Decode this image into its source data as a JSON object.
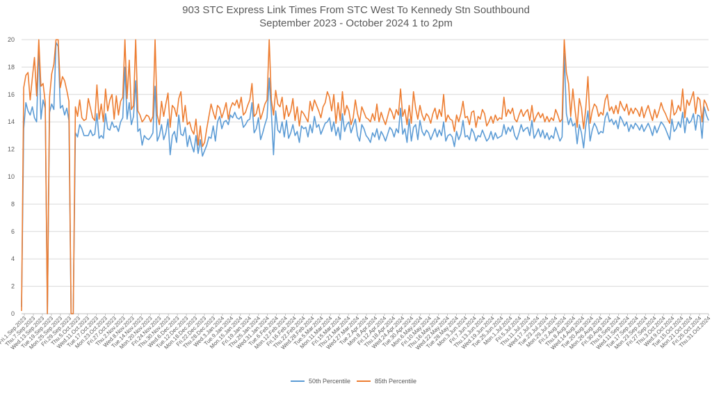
{
  "chart_data": {
    "type": "line",
    "title": "903 STC Express Link Times From STC West To Kennedy Stn Southbound",
    "subtitle": "September 2023 - October 2024 1 to 2pm",
    "xlabel": "",
    "ylabel": "",
    "ylim": [
      0,
      20
    ],
    "yticks": [
      0,
      2,
      4,
      6,
      8,
      10,
      12,
      14,
      16,
      18,
      20
    ],
    "grid": true,
    "legend_position": "bottom",
    "x_tick_labels": [
      "Fri.1.Sep.2023",
      "Thu.7.Sep.2023",
      "Wed.13.Sep.2023",
      "Tue.19.Sep.2023",
      "Mon.25.Sep.2023",
      "Fri.29.Sep.2023",
      "Thu.5.Oct.2023",
      "Wed.11.Oct.2023",
      "Tue.17.Oct.2023",
      "Mon.23.Oct.2023",
      "Fri.27.Oct.2023",
      "Thu.2.Nov.2023",
      "Wed.8.Nov.2023",
      "Tue.14.Nov.2023",
      "Mon.20.Nov.2023",
      "Fri.24.Nov.2023",
      "Thu.30.Nov.2023",
      "Wed.6.Dec.2023",
      "Tue.12.Dec.2023",
      "Mon.18.Dec.2023",
      "Fri.22.Dec.2023",
      "Thu.28.Dec.2023",
      "Wed.3.Jan.2024",
      "Tue.9.Jan.2024",
      "Mon.15.Jan.2024",
      "Fri.19.Jan.2024",
      "Thu.25.Jan.2024",
      "Wed.31.Jan.2024",
      "Tue.6.Feb.2024",
      "Mon.12.Feb.2024",
      "Fri.16.Feb.2024",
      "Thu.22.Feb.2024",
      "Wed.28.Feb.2024",
      "Tue.5.Mar.2024",
      "Mon.11.Mar.2024",
      "Fri.15.Mar.2024",
      "Thu.21.Mar.2024",
      "Wed.27.Mar.2024",
      "Tue.2.Apr.2024",
      "Mon.8.Apr.2024",
      "Fri.12.Apr.2024",
      "Thu.18.Apr.2024",
      "Wed.24.Apr.2024",
      "Tue.30.Apr.2024",
      "Mon.6.May.2024",
      "Fri.10.May.2024",
      "Thu.16.May.2024",
      "Wed.22.May.2024",
      "Tue.28.May.2024",
      "Mon.3.Jun.2024",
      "Fri.7.Jun.2024",
      "Thu.13.Jun.2024",
      "Wed.19.Jun.2024",
      "Tue.25.Jun.2024",
      "Mon.1.Jul.2024",
      "Fri.5.Jul.2024",
      "Thu.11.Jul.2024",
      "Wed.17.Jul.2024",
      "Tue.23.Jul.2024",
      "Mon.29.Jul.2024",
      "Fri.2.Aug.2024",
      "Thu.8.Aug.2024",
      "Wed.14.Aug.2024",
      "Tue.20.Aug.2024",
      "Mon.26.Aug.2024",
      "Fri.30.Aug.2024",
      "Thu.5.Sep.2024",
      "Wed.11.Sep.2024",
      "Tue.17.Sep.2024",
      "Mon.23.Sep.2024",
      "Fri.27.Sep.2024",
      "Thu.3.Oct.2024",
      "Wed.9.Oct.2024",
      "Tue.15.Oct.2024",
      "Mon.21.Oct.2024",
      "Fri.25.Oct.2024",
      "Thu.31.Oct.2024"
    ],
    "series": [
      {
        "name": "50th Percentile",
        "color": "#5b9bd5",
        "values": [
          0.5,
          13.5,
          15.4,
          14.8,
          14.5,
          15.1,
          14.3,
          14.0,
          19.6,
          14.2,
          15.6,
          15.0,
          0.0,
          14.7,
          15.3,
          14.9,
          19.8,
          19.5,
          15.0,
          15.2,
          14.5,
          15.0,
          14.1,
          0.0,
          0.0,
          13.2,
          12.9,
          13.8,
          13.5,
          13.0,
          13.0,
          13.0,
          13.4,
          13.0,
          13.1,
          14.6,
          12.8,
          13.0,
          12.8,
          14.6,
          13.5,
          13.4,
          14.0,
          13.6,
          13.7,
          13.3,
          14.0,
          14.3,
          18.0,
          14.2,
          15.4,
          13.8,
          14.4,
          17.0,
          13.3,
          13.5,
          12.3,
          13.0,
          12.8,
          12.7,
          12.9,
          13.2,
          16.6,
          12.6,
          13.0,
          13.8,
          12.7,
          13.2,
          14.2,
          11.6,
          13.0,
          13.3,
          12.5,
          14.5,
          13.1,
          13.0,
          13.6,
          12.2,
          13.0,
          12.3,
          11.8,
          13.0,
          11.7,
          12.7,
          11.5,
          11.9,
          12.3,
          12.9,
          12.8,
          13.7,
          12.6,
          14.0,
          14.4,
          13.5,
          14.0,
          14.1,
          13.8,
          14.5,
          14.3,
          14.7,
          14.3,
          14.2,
          14.4,
          13.6,
          13.8,
          14.1,
          14.2,
          15.4,
          13.2,
          13.5,
          14.3,
          12.7,
          13.2,
          13.8,
          14.3,
          17.2,
          14.7,
          11.6,
          14.8,
          13.4,
          13.2,
          14.0,
          12.9,
          14.1,
          12.8,
          13.2,
          13.8,
          13.0,
          13.3,
          12.5,
          13.7,
          13.5,
          13.6,
          12.9,
          13.8,
          13.2,
          14.4,
          13.6,
          13.8,
          13.1,
          13.5,
          13.9,
          14.0,
          14.3,
          13.3,
          14.0,
          13.0,
          13.6,
          12.7,
          14.6,
          13.3,
          13.8,
          14.0,
          13.2,
          13.7,
          14.2,
          13.0,
          12.6,
          13.8,
          13.5,
          13.0,
          12.8,
          12.5,
          13.2,
          12.9,
          13.5,
          12.7,
          13.3,
          13.0,
          12.6,
          13.1,
          13.6,
          13.4,
          12.9,
          13.5,
          13.2,
          15.0,
          13.1,
          13.5,
          12.5,
          14.2,
          12.6,
          13.6,
          13.8,
          12.7,
          14.1,
          13.3,
          13.0,
          13.4,
          13.2,
          12.7,
          13.1,
          13.5,
          12.9,
          13.4,
          13.0,
          14.0,
          12.6,
          13.0,
          13.1,
          12.9,
          12.2,
          13.3,
          12.7,
          13.1,
          14.1,
          12.9,
          13.0,
          12.7,
          13.5,
          13.2,
          12.6,
          13.0,
          12.9,
          13.4,
          13.0,
          12.6,
          12.8,
          13.3,
          12.7,
          13.2,
          12.8,
          12.9,
          13.0,
          13.8,
          13.1,
          13.6,
          13.3,
          13.7,
          13.0,
          12.7,
          13.2,
          13.8,
          13.3,
          13.5,
          13.6,
          13.0,
          14.1,
          12.8,
          13.1,
          13.5,
          12.9,
          13.4,
          12.8,
          13.2,
          12.7,
          13.0,
          12.8,
          13.6,
          13.1,
          12.6,
          12.9,
          19.0,
          14.6,
          13.8,
          14.3,
          13.7,
          13.9,
          12.4,
          13.8,
          13.2,
          12.1,
          13.7,
          14.8,
          12.6,
          13.4,
          13.9,
          13.6,
          13.1,
          13.3,
          13.2,
          14.3,
          14.7,
          14.0,
          14.2,
          13.8,
          14.1,
          13.5,
          14.4,
          14.1,
          13.7,
          14.0,
          13.3,
          13.8,
          13.5,
          13.9,
          13.7,
          13.4,
          13.8,
          13.3,
          13.6,
          13.9,
          13.5,
          13.0,
          13.7,
          13.2,
          13.6,
          14.0,
          13.8,
          13.5,
          13.1,
          12.7,
          14.2,
          13.3,
          13.5,
          14.0,
          13.6,
          14.7,
          13.2,
          14.3,
          13.9,
          14.1,
          14.6,
          13.4,
          14.5,
          14.4,
          12.8,
          15.1,
          14.5,
          14.1
        ]
      },
      {
        "name": "85th Percentile",
        "color": "#ed7d31",
        "values": [
          0.2,
          16.5,
          17.4,
          17.6,
          15.6,
          17.2,
          18.7,
          15.9,
          20.0,
          16.6,
          16.8,
          15.4,
          0.0,
          15.8,
          17.5,
          18.2,
          20.0,
          20.0,
          16.5,
          17.3,
          17.0,
          16.3,
          15.5,
          0.0,
          0.0,
          15.1,
          14.4,
          15.6,
          14.3,
          14.1,
          14.2,
          15.7,
          15.0,
          14.3,
          14.1,
          16.7,
          14.2,
          15.3,
          14.0,
          16.4,
          14.8,
          15.6,
          16.0,
          14.2,
          15.9,
          14.5,
          15.5,
          15.8,
          20.0,
          15.7,
          18.5,
          14.9,
          15.2,
          20.0,
          14.8,
          14.5,
          14.0,
          14.2,
          14.5,
          14.4,
          14.0,
          14.4,
          20.0,
          14.5,
          13.8,
          15.5,
          14.4,
          15.3,
          16.1,
          13.6,
          15.2,
          15.0,
          14.4,
          15.7,
          16.2,
          14.0,
          15.2,
          13.8,
          14.0,
          13.4,
          13.1,
          14.2,
          12.3,
          13.7,
          12.2,
          12.5,
          13.5,
          14.4,
          15.3,
          14.7,
          14.2,
          15.2,
          15.0,
          14.3,
          14.8,
          15.4,
          14.2,
          15.0,
          15.4,
          15.2,
          15.6,
          15.0,
          15.8,
          14.5,
          14.7,
          15.2,
          15.6,
          16.8,
          14.4,
          14.6,
          15.3,
          14.2,
          14.7,
          15.3,
          15.6,
          20.0,
          15.6,
          14.5,
          16.3,
          15.3,
          15.1,
          15.8,
          14.2,
          15.2,
          14.4,
          14.8,
          15.7,
          14.1,
          15.1,
          13.7,
          14.8,
          14.6,
          14.3,
          14.0,
          15.5,
          14.8,
          15.6,
          15.2,
          14.8,
          14.3,
          15.1,
          15.4,
          16.2,
          15.8,
          14.8,
          16.0,
          13.9,
          15.4,
          14.1,
          16.2,
          14.5,
          15.2,
          14.8,
          13.8,
          14.3,
          15.6,
          14.6,
          14.0,
          15.1,
          14.7,
          14.3,
          14.2,
          14.0,
          14.6,
          14.1,
          15.3,
          14.0,
          14.7,
          14.2,
          13.8,
          14.4,
          15.0,
          14.7,
          14.2,
          14.9,
          14.5,
          16.4,
          14.4,
          14.9,
          13.8,
          15.2,
          13.9,
          16.2,
          15.0,
          14.2,
          15.2,
          14.5,
          14.1,
          14.6,
          14.4,
          13.9,
          14.6,
          15.0,
          14.2,
          14.9,
          14.4,
          16.0,
          14.0,
          14.5,
          14.2,
          14.1,
          13.3,
          14.5,
          14.0,
          14.6,
          15.5,
          14.3,
          14.4,
          13.8,
          14.7,
          14.8,
          13.6,
          14.4,
          14.2,
          14.9,
          14.6,
          13.7,
          14.0,
          14.4,
          13.9,
          14.5,
          14.1,
          14.3,
          14.2,
          15.8,
          14.4,
          14.9,
          14.6,
          15.0,
          14.2,
          14.0,
          14.5,
          14.9,
          14.4,
          14.7,
          14.9,
          14.1,
          15.2,
          14.0,
          14.4,
          14.7,
          14.3,
          14.6,
          14.0,
          14.4,
          14.0,
          14.3,
          14.1,
          14.9,
          14.5,
          14.0,
          14.2,
          20.0,
          17.6,
          16.8,
          14.4,
          16.4,
          14.9,
          13.6,
          15.7,
          15.0,
          13.5,
          15.0,
          17.3,
          13.9,
          14.8,
          15.3,
          15.1,
          14.4,
          14.7,
          14.5,
          15.6,
          16.0,
          14.8,
          15.1,
          14.6,
          15.2,
          14.6,
          15.5,
          15.1,
          14.8,
          15.3,
          14.5,
          15.0,
          14.6,
          15.0,
          14.8,
          14.4,
          15.1,
          14.3,
          14.8,
          15.2,
          14.6,
          14.1,
          14.9,
          14.3,
          14.8,
          15.4,
          14.9,
          14.6,
          14.2,
          13.9,
          15.6,
          14.5,
          14.7,
          15.2,
          14.8,
          16.4,
          14.3,
          15.6,
          15.2,
          15.7,
          16.2,
          14.6,
          15.8,
          15.6,
          14.0,
          15.6,
          15.3,
          14.8
        ]
      }
    ]
  }
}
